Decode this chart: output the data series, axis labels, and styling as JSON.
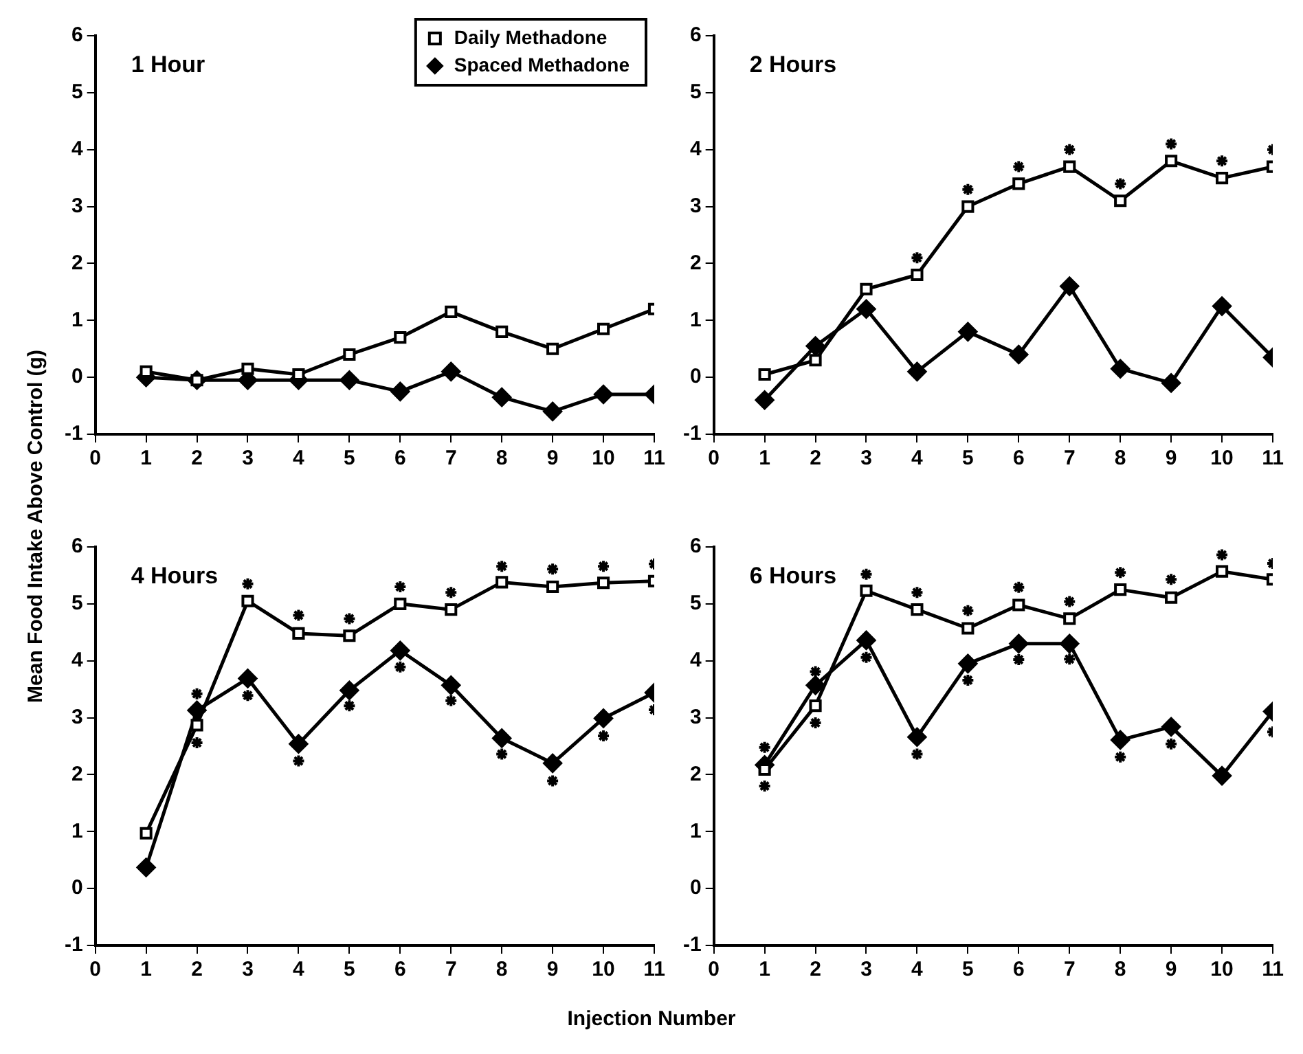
{
  "chart_data": [
    {
      "type": "line",
      "title": "1 Hour",
      "xlabel": "Injection Number",
      "ylabel": "Mean Food Intake Above Control (g)",
      "x": [
        1,
        2,
        3,
        4,
        5,
        6,
        7,
        8,
        9,
        10,
        11
      ],
      "xlim": [
        0,
        11
      ],
      "xticks": [
        0,
        1,
        2,
        3,
        4,
        5,
        6,
        7,
        8,
        9,
        10,
        11
      ],
      "ylim": [
        -1,
        6
      ],
      "yticks": [
        -1,
        0,
        1,
        2,
        3,
        4,
        5,
        6
      ],
      "legend": "top right",
      "line_style": "solid",
      "series": [
        {
          "name": "Daily Methadone",
          "color": "#000000",
          "marker": "square",
          "values": [
            0.1,
            -0.05,
            0.15,
            0.05,
            0.4,
            0.7,
            1.15,
            0.8,
            0.5,
            0.85,
            1.2
          ]
        },
        {
          "name": "Spaced Methadone",
          "color": "#000000",
          "marker": "diamond",
          "values": [
            0,
            -0.05,
            -0.05,
            -0.05,
            -0.05,
            -0.25,
            0.1,
            -0.35,
            -0.6,
            -0.3,
            -0.3
          ]
        }
      ]
    },
    {
      "type": "line",
      "title": "2 Hours",
      "x": [
        1,
        2,
        3,
        4,
        5,
        6,
        7,
        8,
        9,
        10,
        11
      ],
      "xlim": [
        0,
        11
      ],
      "xticks": [
        0,
        1,
        2,
        3,
        4,
        5,
        6,
        7,
        8,
        9,
        10,
        11
      ],
      "ylim": [
        -1,
        6
      ],
      "yticks": [
        -1,
        0,
        1,
        2,
        3,
        4,
        5,
        6
      ],
      "line_style": "solid",
      "series": [
        {
          "color": "#000000",
          "marker": "square",
          "values": [
            0.05,
            0.3,
            1.55,
            1.8,
            3.0,
            3.4,
            3.7,
            3.1,
            3.8,
            3.5,
            3.7
          ]
        },
        {
          "color": "#000000",
          "marker": "diamond",
          "values": [
            -0.4,
            0.55,
            1.2,
            0.1,
            0.8,
            0.4,
            1.6,
            0.15,
            -0.1,
            1.25,
            0.35
          ]
        },
        {
          "type": "scatter",
          "color": "#000000",
          "marker": "cross",
          "x": [
            4,
            5,
            6,
            7,
            8,
            9,
            10,
            11
          ],
          "values": [
            2.1,
            3.3,
            3.7,
            4.0,
            3.4,
            4.1,
            3.8,
            4.0
          ]
        }
      ]
    },
    {
      "type": "line",
      "title": "4 Hours",
      "x": [
        1,
        2,
        3,
        4,
        5,
        6,
        7,
        8,
        9,
        10,
        11
      ],
      "xlim": [
        0,
        11
      ],
      "xticks": [
        0,
        1,
        2,
        3,
        4,
        5,
        6,
        7,
        8,
        9,
        10,
        11
      ],
      "ylim": [
        -1,
        6
      ],
      "yticks": [
        -1,
        0,
        1,
        2,
        3,
        4,
        5,
        6
      ],
      "line_style": "solid",
      "series": [
        {
          "color": "#000000",
          "marker": "square",
          "values": [
            0.97,
            2.87,
            5.05,
            4.48,
            4.44,
            5.0,
            4.9,
            5.38,
            5.3,
            5.37,
            5.4
          ]
        },
        {
          "color": "#000000",
          "marker": "diamond",
          "values": [
            0.37,
            3.13,
            3.69,
            2.54,
            3.48,
            4.18,
            3.57,
            2.64,
            2.2,
            2.99,
            3.44
          ]
        },
        {
          "type": "scatter",
          "color": "#000000",
          "marker": "cross",
          "x": [
            2,
            2,
            3,
            3,
            4,
            4,
            5,
            5,
            6,
            6,
            7,
            7,
            8,
            8,
            9,
            9,
            10,
            10,
            11,
            11
          ],
          "values": [
            3.42,
            2.56,
            5.35,
            3.39,
            4.8,
            2.24,
            4.74,
            3.21,
            5.3,
            3.89,
            5.2,
            3.3,
            5.66,
            2.36,
            5.61,
            1.89,
            5.66,
            2.68,
            5.7,
            3.14
          ]
        }
      ]
    },
    {
      "type": "line",
      "title": "6 Hours",
      "x": [
        1,
        2,
        3,
        4,
        5,
        6,
        7,
        8,
        9,
        10,
        11
      ],
      "xlim": [
        0,
        11
      ],
      "xticks": [
        0,
        1,
        2,
        3,
        4,
        5,
        6,
        7,
        8,
        9,
        10,
        11
      ],
      "ylim": [
        -1,
        6
      ],
      "yticks": [
        -1,
        0,
        1,
        2,
        3,
        4,
        5,
        6
      ],
      "line_style": "solid",
      "series": [
        {
          "color": "#000000",
          "marker": "square",
          "values": [
            2.09,
            3.21,
            5.23,
            4.9,
            4.57,
            4.98,
            4.74,
            5.25,
            5.11,
            5.57,
            5.43
          ]
        },
        {
          "color": "#000000",
          "marker": "diamond",
          "values": [
            2.17,
            3.57,
            4.36,
            2.66,
            3.95,
            4.3,
            4.3,
            2.61,
            2.84,
            1.98,
            3.11
          ]
        },
        {
          "type": "scatter",
          "color": "#000000",
          "marker": "cross",
          "x": [
            1,
            1,
            2,
            2,
            3,
            3,
            4,
            4,
            5,
            5,
            6,
            6,
            7,
            7,
            8,
            8,
            9,
            9,
            10,
            11,
            11
          ],
          "values": [
            2.48,
            1.8,
            3.81,
            2.91,
            5.52,
            4.06,
            5.2,
            2.36,
            4.88,
            3.66,
            5.29,
            4.02,
            5.04,
            4.03,
            5.55,
            2.31,
            5.43,
            2.54,
            5.86,
            5.71,
            2.75
          ]
        }
      ]
    }
  ]
}
